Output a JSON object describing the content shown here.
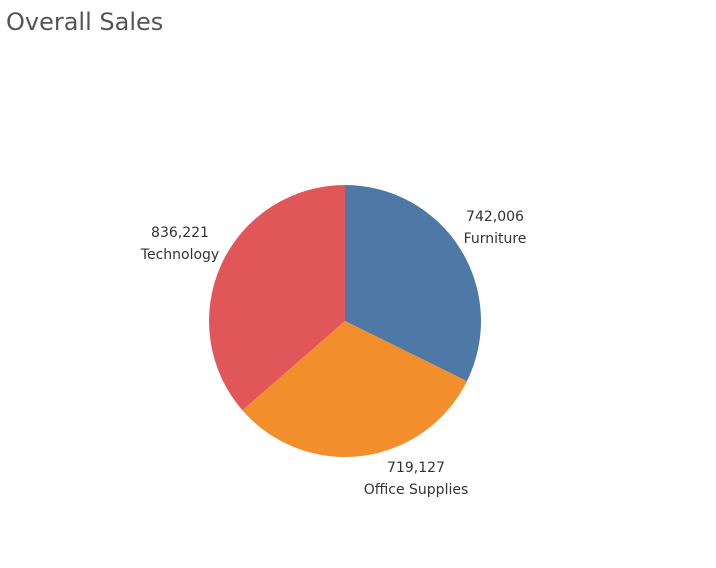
{
  "chart_data": {
    "type": "pie",
    "title": "Overall Sales",
    "slices": [
      {
        "category": "Furniture",
        "value": 742006,
        "label": "742,006",
        "color": "#4e79a7"
      },
      {
        "category": "Office Supplies",
        "value": 719127,
        "label": "719,127",
        "color": "#f28e2b"
      },
      {
        "category": "Technology",
        "value": 836221,
        "label": "836,221",
        "color": "#e15759"
      }
    ]
  }
}
